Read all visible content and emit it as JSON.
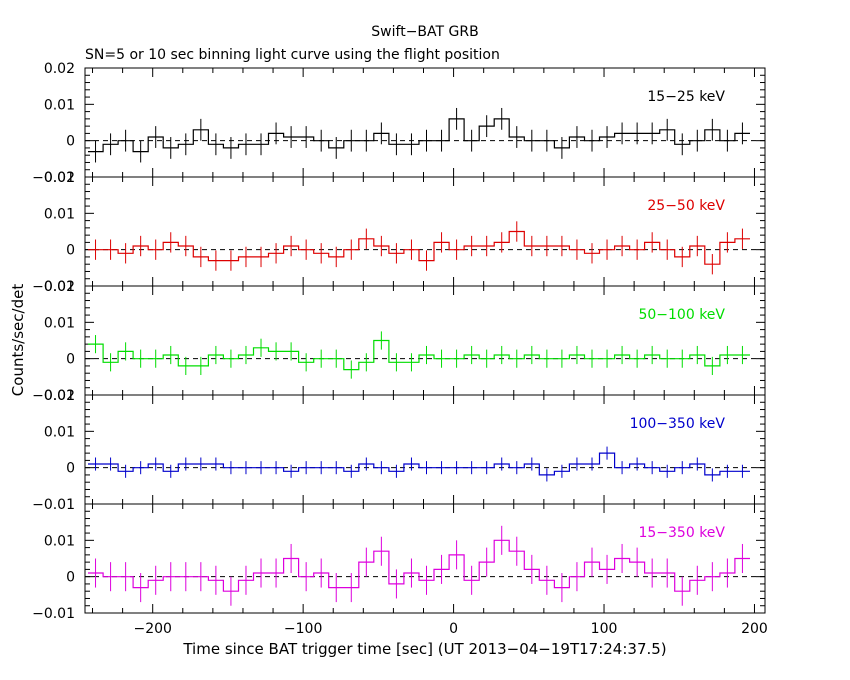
{
  "chart_data": {
    "type": "line",
    "title": "Swift−BAT GRB",
    "subtitle": "SN=5 or 10 sec binning light curve using the flight position",
    "xlabel": "Time since BAT trigger time [sec] (UT 2013−04−19T17:24:37.5)",
    "ylabel": "Counts/sec/det",
    "xlim": [
      -245,
      207
    ],
    "x_ticks": [
      -200,
      -100,
      0,
      100,
      200
    ],
    "x_tick_labels": [
      "−200",
      "−100",
      "0",
      "100",
      "200"
    ],
    "grid": false,
    "bin_width": 10,
    "x": [
      -238,
      -228,
      -218,
      -208,
      -198,
      -188,
      -178,
      -168,
      -158,
      -148,
      -138,
      -128,
      -118,
      -108,
      -98,
      -88,
      -78,
      -68,
      -58,
      -48,
      -38,
      -28,
      -18,
      -8,
      2,
      12,
      22,
      32,
      42,
      52,
      62,
      72,
      82,
      92,
      102,
      112,
      122,
      132,
      142,
      152,
      162,
      172,
      182,
      192
    ],
    "panels": [
      {
        "name": "15−25 keV",
        "color": "#000000",
        "ylim": [
          -0.01,
          0.02
        ],
        "y_ticks": [
          -0.01,
          0,
          0.01,
          0.02
        ],
        "y_tick_labels": [
          "−0.01",
          "0",
          "0.01",
          "0.02"
        ],
        "values": [
          -0.003,
          -0.001,
          0.0,
          -0.003,
          0.001,
          -0.002,
          -0.001,
          0.003,
          -0.001,
          -0.002,
          -0.001,
          -0.001,
          0.002,
          0.001,
          0.001,
          0.0,
          -0.002,
          0.0,
          0.0,
          0.002,
          -0.001,
          -0.001,
          0.0,
          0.0,
          0.006,
          0.0,
          0.004,
          0.006,
          0.001,
          0.0,
          0.0,
          -0.002,
          0.001,
          0.0,
          0.001,
          0.002,
          0.002,
          0.002,
          0.003,
          -0.001,
          0.0,
          0.003,
          0.0,
          0.002
        ],
        "errors": 0.003
      },
      {
        "name": "25−50 keV",
        "color": "#dd0000",
        "ylim": [
          -0.01,
          0.02
        ],
        "y_ticks": [
          -0.01,
          0,
          0.01,
          0.02
        ],
        "y_tick_labels": [
          "−0.01",
          "0",
          "0.01",
          "0.02"
        ],
        "values": [
          0.0,
          0.0,
          -0.001,
          0.001,
          0.0,
          0.002,
          0.001,
          -0.002,
          -0.003,
          -0.003,
          -0.002,
          -0.002,
          -0.001,
          0.001,
          0.0,
          -0.001,
          -0.002,
          0.0,
          0.003,
          0.001,
          -0.001,
          0.0,
          -0.003,
          0.002,
          0.0,
          0.001,
          0.001,
          0.002,
          0.005,
          0.001,
          0.001,
          0.001,
          0.0,
          -0.001,
          0.0,
          0.001,
          0.0,
          0.002,
          0.0,
          -0.002,
          0.001,
          -0.004,
          0.002,
          0.003
        ],
        "errors": 0.0028
      },
      {
        "name": "50−100 keV",
        "color": "#00dd00",
        "ylim": [
          -0.01,
          0.02
        ],
        "y_ticks": [
          -0.01,
          0,
          0.01,
          0.02
        ],
        "y_tick_labels": [
          "−0.01",
          "0",
          "0.01",
          "0.02"
        ],
        "values": [
          0.004,
          -0.001,
          0.002,
          0.0,
          0.0,
          0.001,
          -0.002,
          -0.002,
          0.001,
          0.0,
          0.001,
          0.003,
          0.002,
          0.002,
          -0.001,
          0.0,
          0.0,
          -0.003,
          -0.001,
          0.005,
          -0.001,
          -0.001,
          0.001,
          0.0,
          0.0,
          0.001,
          0.0,
          0.001,
          0.0,
          0.001,
          0.0,
          0.0,
          0.001,
          0.0,
          0.0,
          0.001,
          0.0,
          0.001,
          0.0,
          0.0,
          0.001,
          -0.002,
          0.001,
          0.001
        ],
        "errors": 0.0025
      },
      {
        "name": "100−350 keV",
        "color": "#0000cc",
        "ylim": [
          -0.01,
          0.02
        ],
        "y_ticks": [
          -0.01,
          0,
          0.01,
          0.02
        ],
        "y_tick_labels": [
          "−0.01",
          "0",
          "0.01",
          "0.02"
        ],
        "values": [
          0.001,
          0.001,
          -0.001,
          0.0,
          0.001,
          -0.001,
          0.001,
          0.001,
          0.001,
          0.0,
          0.0,
          0.0,
          0.0,
          -0.001,
          0.0,
          0.0,
          0.0,
          -0.001,
          0.001,
          0.0,
          -0.001,
          0.001,
          0.0,
          0.0,
          0.0,
          0.0,
          0.0,
          0.001,
          0.0,
          0.001,
          -0.002,
          -0.001,
          0.001,
          0.001,
          0.004,
          0.0,
          0.001,
          0.0,
          -0.001,
          0.0,
          0.001,
          -0.002,
          -0.001,
          -0.001
        ],
        "errors": 0.0018
      },
      {
        "name": "15−350 keV",
        "color": "#dd00dd",
        "ylim": [
          -0.01,
          0.02
        ],
        "y_ticks": [
          -0.01,
          0,
          0.01
        ],
        "y_tick_labels": [
          "−0.01",
          "0",
          "0.01"
        ],
        "values": [
          0.001,
          0.0,
          0.0,
          -0.003,
          -0.001,
          0.0,
          0.0,
          0.0,
          -0.001,
          -0.004,
          -0.001,
          0.001,
          0.001,
          0.005,
          0.0,
          0.001,
          -0.003,
          -0.003,
          0.004,
          0.007,
          -0.002,
          0.001,
          -0.001,
          0.002,
          0.006,
          -0.001,
          0.004,
          0.01,
          0.007,
          0.002,
          -0.001,
          -0.003,
          0.0,
          0.004,
          0.002,
          0.005,
          0.004,
          0.001,
          0.001,
          -0.004,
          -0.001,
          0.0,
          0.001,
          0.005
        ],
        "errors": 0.004
      }
    ]
  }
}
